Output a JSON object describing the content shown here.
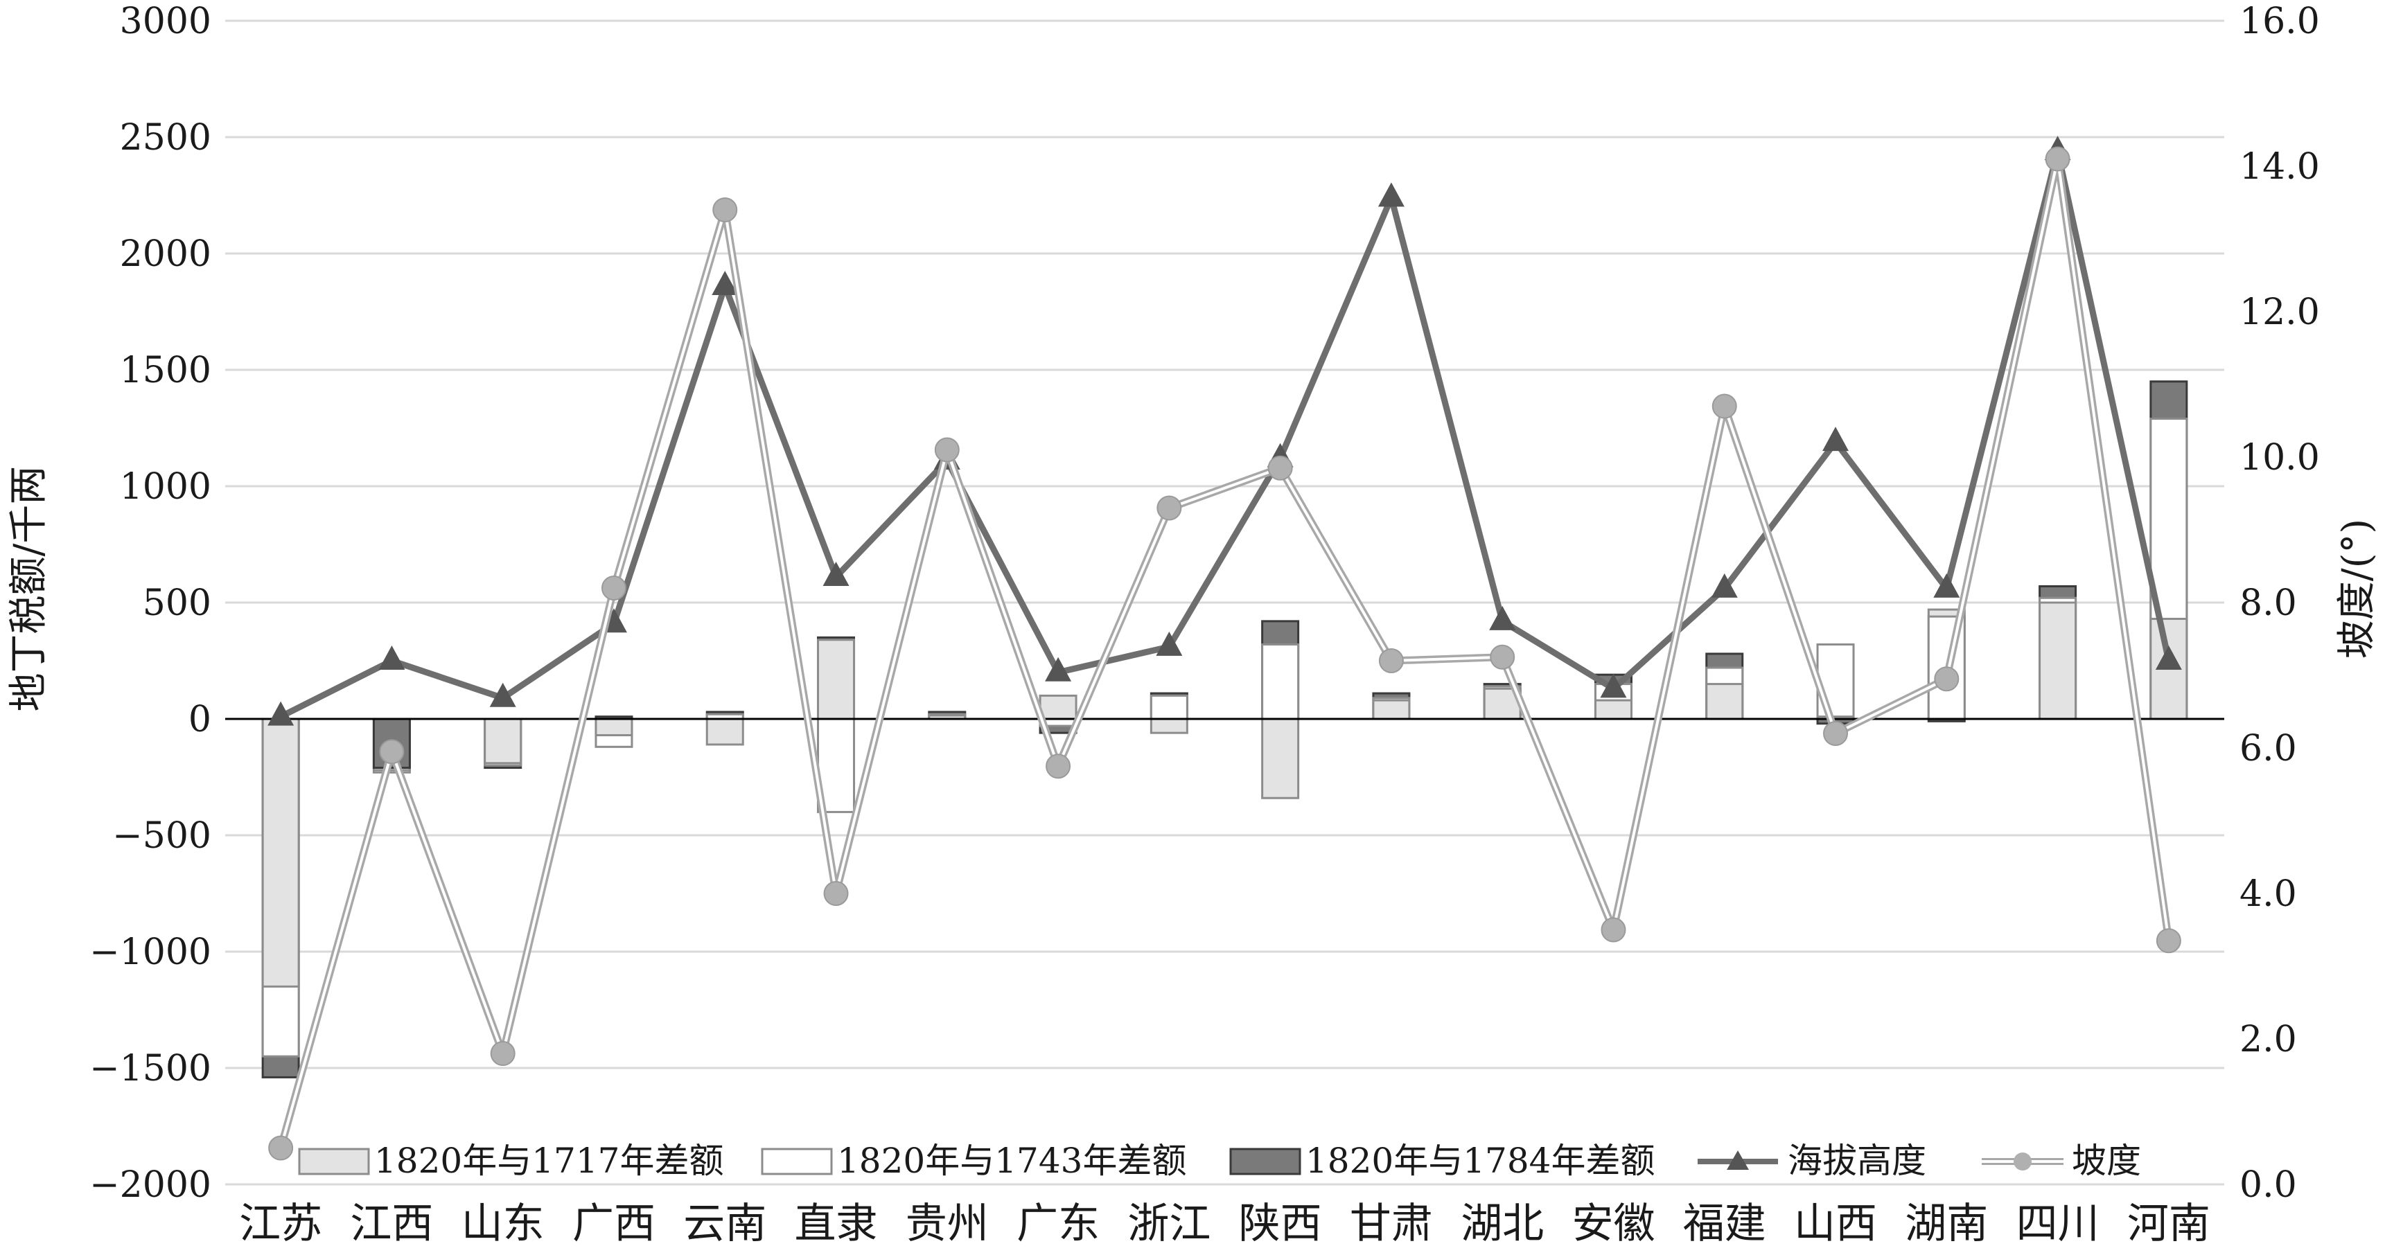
{
  "chart_data": {
    "type": "bar",
    "categories": [
      "江苏",
      "江西",
      "山东",
      "广西",
      "云南",
      "直隶",
      "贵州",
      "广东",
      "浙江",
      "陕西",
      "甘肃",
      "湖北",
      "安徽",
      "福建",
      "山西",
      "湖南",
      "四川",
      "河南"
    ],
    "y_left": {
      "label": "地丁税额/千两",
      "ylim": [
        -2000,
        3000
      ],
      "ticks": [
        "3000",
        "2500",
        "2000",
        "1500",
        "1000",
        "500",
        "0",
        "−500",
        "−1000",
        "−1500",
        "−2000"
      ]
    },
    "y_right": {
      "label": "坡度/(°)",
      "ylim": [
        0,
        16
      ],
      "ticks": [
        "16.0",
        "14.0",
        "12.0",
        "10.0",
        "8.0",
        "6.0",
        "4.0",
        "2.0",
        "0.0"
      ]
    },
    "bar_series": [
      {
        "name": "1820年与1717年差额",
        "axis": "left",
        "color": "#e3e3e3",
        "values": [
          -1150,
          -230,
          -190,
          -70,
          -110,
          340,
          15,
          100,
          -60,
          -340,
          80,
          130,
          80,
          150,
          10,
          470,
          500,
          430
        ]
      },
      {
        "name": "1820年与1743年差额",
        "axis": "left",
        "color": "#ffffff",
        "values": [
          -1450,
          -220,
          -200,
          -120,
          20,
          -400,
          20,
          -30,
          100,
          320,
          90,
          140,
          150,
          220,
          320,
          440,
          520,
          1290
        ]
      },
      {
        "name": "1820年与1784年差额",
        "axis": "left",
        "color": "#7a7a7a",
        "values": [
          -1540,
          -210,
          -210,
          10,
          30,
          350,
          30,
          -60,
          110,
          420,
          110,
          150,
          190,
          280,
          -20,
          -10,
          570,
          1450
        ]
      }
    ],
    "line_series": [
      {
        "name": "海拔高度",
        "axis": "left",
        "marker": "triangle",
        "color": "#6e6e6e",
        "values": [
          10,
          250,
          90,
          410,
          1860,
          610,
          1110,
          200,
          310,
          1120,
          2240,
          420,
          130,
          560,
          1190,
          560,
          2440,
          250
        ]
      },
      {
        "name": "坡度",
        "axis": "right",
        "marker": "circle",
        "color": "#b0b0b0",
        "values": [
          0.5,
          5.95,
          1.8,
          8.2,
          13.4,
          4.0,
          10.1,
          5.75,
          9.3,
          9.85,
          7.2,
          7.25,
          3.5,
          10.7,
          6.2,
          6.95,
          14.1,
          3.35
        ]
      }
    ],
    "grid": true,
    "legend_position": "bottom"
  }
}
